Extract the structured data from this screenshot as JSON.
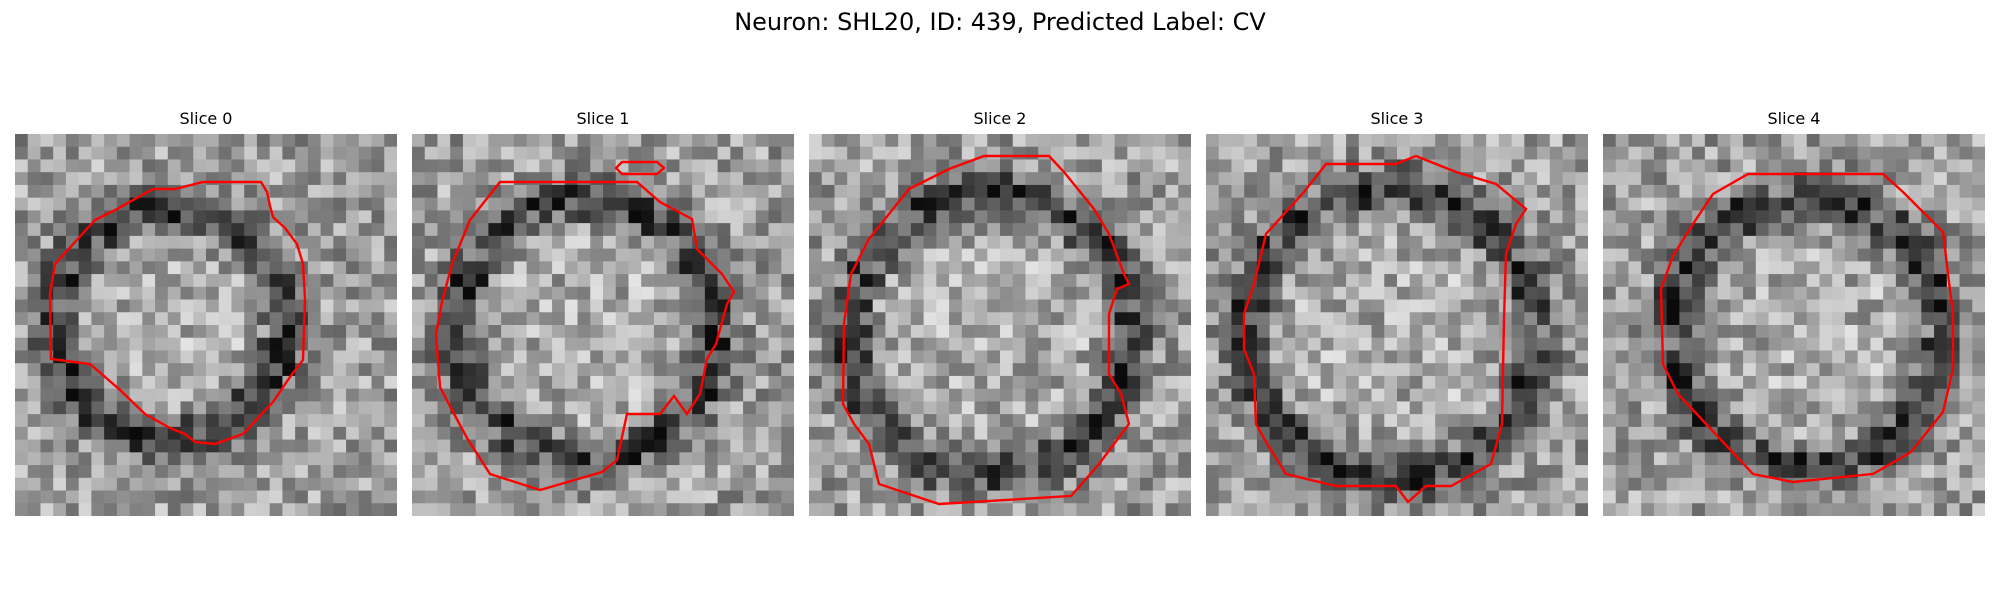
{
  "figure": {
    "title": "Neuron: SHL20, ID: 439, Predicted Label: CV"
  },
  "panels": [
    {
      "title": "Slice 0"
    },
    {
      "title": "Slice 1"
    },
    {
      "title": "Slice 2"
    },
    {
      "title": "Slice 3"
    },
    {
      "title": "Slice 4"
    }
  ],
  "colors": {
    "contour": "#ff0000",
    "background": "#ffffff"
  }
}
